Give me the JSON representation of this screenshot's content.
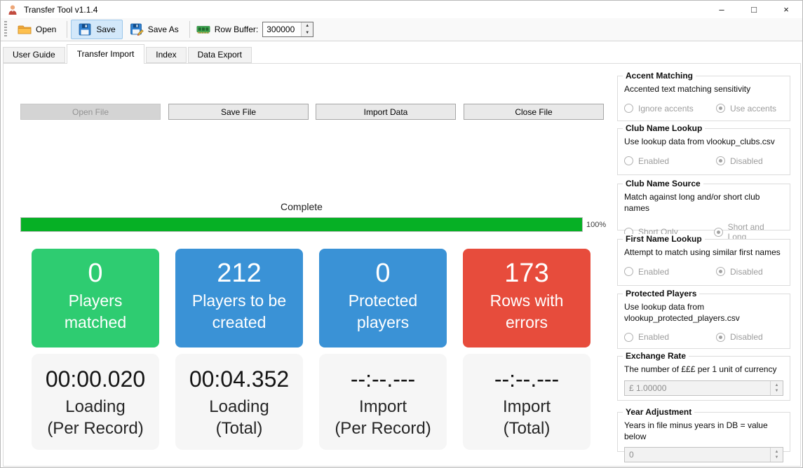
{
  "window": {
    "title": "Transfer Tool v1.1.4",
    "app_icon": "person-icon",
    "controls": {
      "minimize": "–",
      "maximize": "□",
      "close": "×"
    }
  },
  "toolbar": {
    "open_label": "Open",
    "save_label": "Save",
    "save_as_label": "Save As",
    "row_buffer_label": "Row Buffer:",
    "row_buffer_value": "300000",
    "icons": {
      "open": "folder-icon",
      "save": "floppy-icon",
      "save_as": "floppy-edit-icon",
      "row_buffer": "ram-icon"
    }
  },
  "tabs": [
    {
      "label": "User Guide",
      "active": false
    },
    {
      "label": "Transfer Import",
      "active": true
    },
    {
      "label": "Index",
      "active": false
    },
    {
      "label": "Data Export",
      "active": false
    }
  ],
  "file_buttons": [
    {
      "label": "Open File",
      "enabled": false
    },
    {
      "label": "Save File",
      "enabled": true
    },
    {
      "label": "Import Data",
      "enabled": true
    },
    {
      "label": "Close File",
      "enabled": true
    }
  ],
  "progress": {
    "label": "Complete",
    "value": 100,
    "percent_text": "100%",
    "bar_color": "#06b025"
  },
  "cards": [
    {
      "value": "0",
      "label": "Players matched",
      "color": "#2ecc71"
    },
    {
      "value": "212",
      "label": "Players to be created",
      "color": "#3a92d6"
    },
    {
      "value": "0",
      "label": "Protected players",
      "color": "#3a92d6"
    },
    {
      "value": "173",
      "label": "Rows with errors",
      "color": "#e74c3c"
    }
  ],
  "timers": [
    {
      "value": "00:00.020",
      "line1": "Loading",
      "line2": "(Per Record)"
    },
    {
      "value": "00:04.352",
      "line1": "Loading",
      "line2": "(Total)"
    },
    {
      "value": "--:--.---",
      "line1": "Import",
      "line2": "(Per Record)"
    },
    {
      "value": "--:--.---",
      "line1": "Import",
      "line2": "(Total)"
    }
  ],
  "sidebar": {
    "groups": [
      {
        "title": "Accent Matching",
        "description": "Accented text matching sensitivity",
        "type": "radio",
        "options": [
          {
            "label": "Ignore accents",
            "selected": false
          },
          {
            "label": "Use accents",
            "selected": true
          }
        ]
      },
      {
        "title": "Club Name Lookup",
        "description": "Use lookup data from vlookup_clubs.csv",
        "type": "radio",
        "options": [
          {
            "label": "Enabled",
            "selected": false
          },
          {
            "label": "Disabled",
            "selected": true
          }
        ]
      },
      {
        "title": "Club Name Source",
        "description": "Match against long and/or short club names",
        "type": "radio",
        "options": [
          {
            "label": "Short Only",
            "selected": false
          },
          {
            "label": "Short and Long",
            "selected": true
          }
        ]
      },
      {
        "title": "First Name Lookup",
        "description": "Attempt to match using similar first names",
        "type": "radio",
        "options": [
          {
            "label": "Enabled",
            "selected": false
          },
          {
            "label": "Disabled",
            "selected": true
          }
        ]
      },
      {
        "title": "Protected Players",
        "description": "Use lookup data from vlookup_protected_players.csv",
        "type": "radio",
        "options": [
          {
            "label": "Enabled",
            "selected": false
          },
          {
            "label": "Disabled",
            "selected": true
          }
        ]
      },
      {
        "title": "Exchange Rate",
        "description": "The number of £££ per 1 unit of currency",
        "type": "spinner",
        "value": "£ 1.00000"
      },
      {
        "title": "Year Adjustment",
        "description": "Years in file minus years in DB = value below",
        "type": "spinner",
        "value": "0"
      }
    ]
  }
}
